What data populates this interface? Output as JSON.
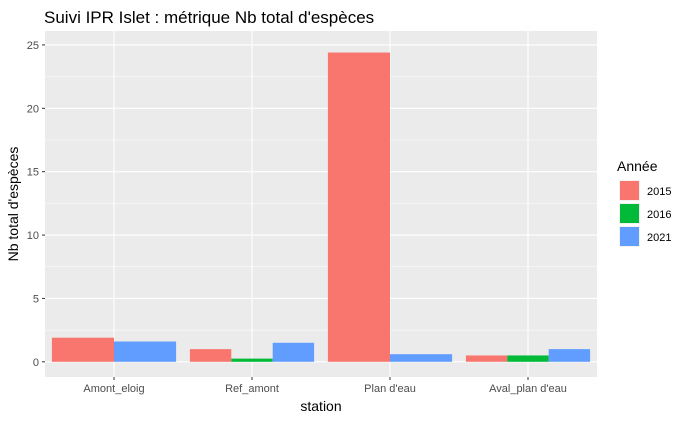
{
  "chart_data": {
    "type": "bar",
    "title": "Suivi IPR Islet : métrique Nb total d'espèces",
    "xlabel": "station",
    "ylabel": "Nb total d'espèces",
    "categories": [
      "Amont_eloig",
      "Ref_amont",
      "Plan d'eau",
      "Aval_plan d'eau"
    ],
    "ylim": [
      -1.2,
      26.1
    ],
    "yticks": [
      0,
      5,
      10,
      15,
      20,
      25
    ],
    "grid": true,
    "legend": {
      "title": "Année",
      "placement": "right",
      "entries": [
        "2015",
        "2016",
        "2021"
      ]
    },
    "series": [
      {
        "name": "2015",
        "color": "#F8766D",
        "values": [
          1.9,
          1.0,
          24.4,
          0.5
        ]
      },
      {
        "name": "2016",
        "color": "#00BA38",
        "values": [
          null,
          0.25,
          null,
          0.5
        ]
      },
      {
        "name": "2021",
        "color": "#619CFF",
        "values": [
          1.6,
          1.5,
          0.6,
          1.0
        ]
      }
    ]
  }
}
